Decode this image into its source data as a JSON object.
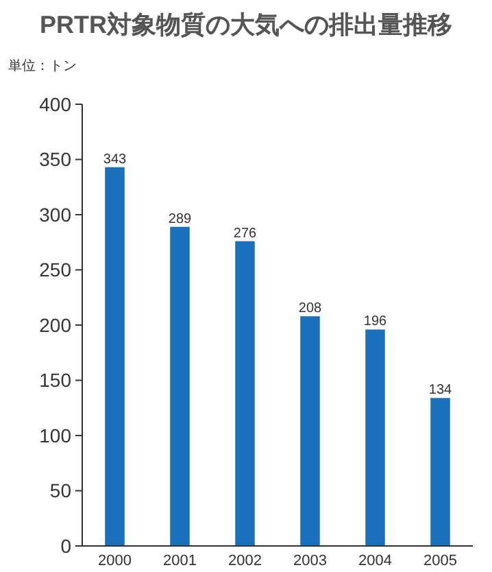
{
  "chart_data": {
    "type": "bar",
    "title": "PRTR対象物質の大気への排出量推移",
    "ylabel": "単位：トン",
    "categories": [
      "2000",
      "2001",
      "2002",
      "2003",
      "2004",
      "2005"
    ],
    "values": [
      343,
      289,
      276,
      208,
      196,
      134
    ],
    "color": "#1a70bb",
    "ylim": [
      0,
      400
    ],
    "yticks": [
      0,
      50,
      100,
      150,
      200,
      250,
      300,
      350,
      400
    ],
    "grid": false,
    "data_labels": true
  }
}
